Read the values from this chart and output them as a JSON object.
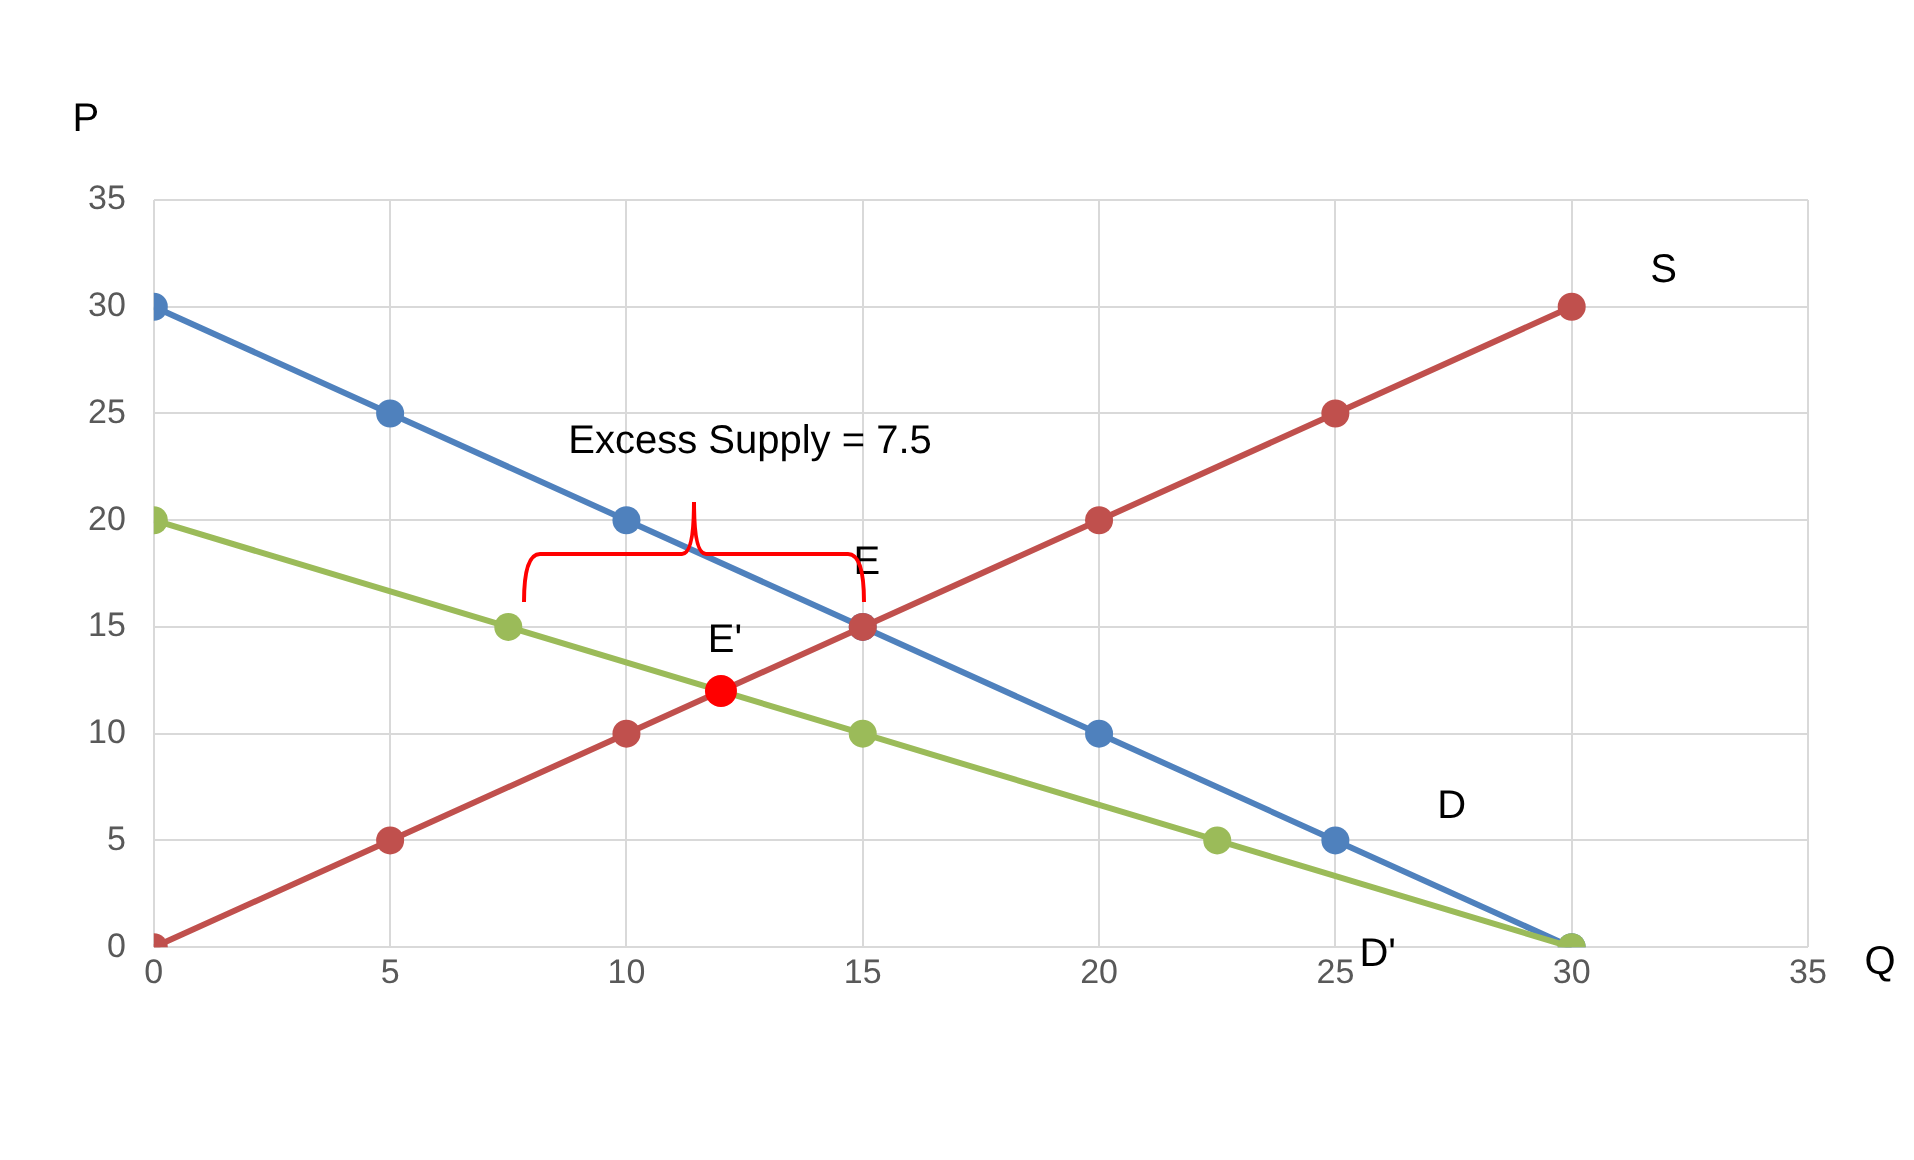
{
  "chart_data": {
    "type": "line",
    "xlabel": "Q",
    "ylabel": "P",
    "xlim": [
      0,
      35
    ],
    "xticks": [
      0,
      5,
      10,
      15,
      20,
      25,
      30,
      35
    ],
    "ylim": [
      0,
      35
    ],
    "yticks": [
      0,
      5,
      10,
      15,
      20,
      25,
      30,
      35
    ],
    "grid": true,
    "legend": false,
    "marker": "circle",
    "series": [
      {
        "name": "D",
        "color": "#4f81bd",
        "x": [
          0,
          5,
          10,
          15,
          20,
          25,
          30
        ],
        "values": [
          30,
          25,
          20,
          15,
          10,
          5,
          0
        ]
      },
      {
        "name": "S",
        "color": "#c0504d",
        "x": [
          0,
          5,
          10,
          15,
          20,
          25,
          30
        ],
        "values": [
          0,
          5,
          10,
          15,
          20,
          25,
          30
        ]
      },
      {
        "name": "D'",
        "color": "#9bbb59",
        "x": [
          0,
          7.5,
          15,
          22.5,
          30
        ],
        "values": [
          20,
          15,
          10,
          5,
          0
        ]
      },
      {
        "type": "scatter",
        "color": "#ff0000",
        "x": [
          12
        ],
        "values": [
          12
        ]
      }
    ],
    "annotations": [
      {
        "text": "E",
        "x": 15,
        "y": 15
      },
      {
        "text": "E'",
        "x": 12,
        "y": 12
      },
      "Excess Supply = 7.5"
    ]
  }
}
